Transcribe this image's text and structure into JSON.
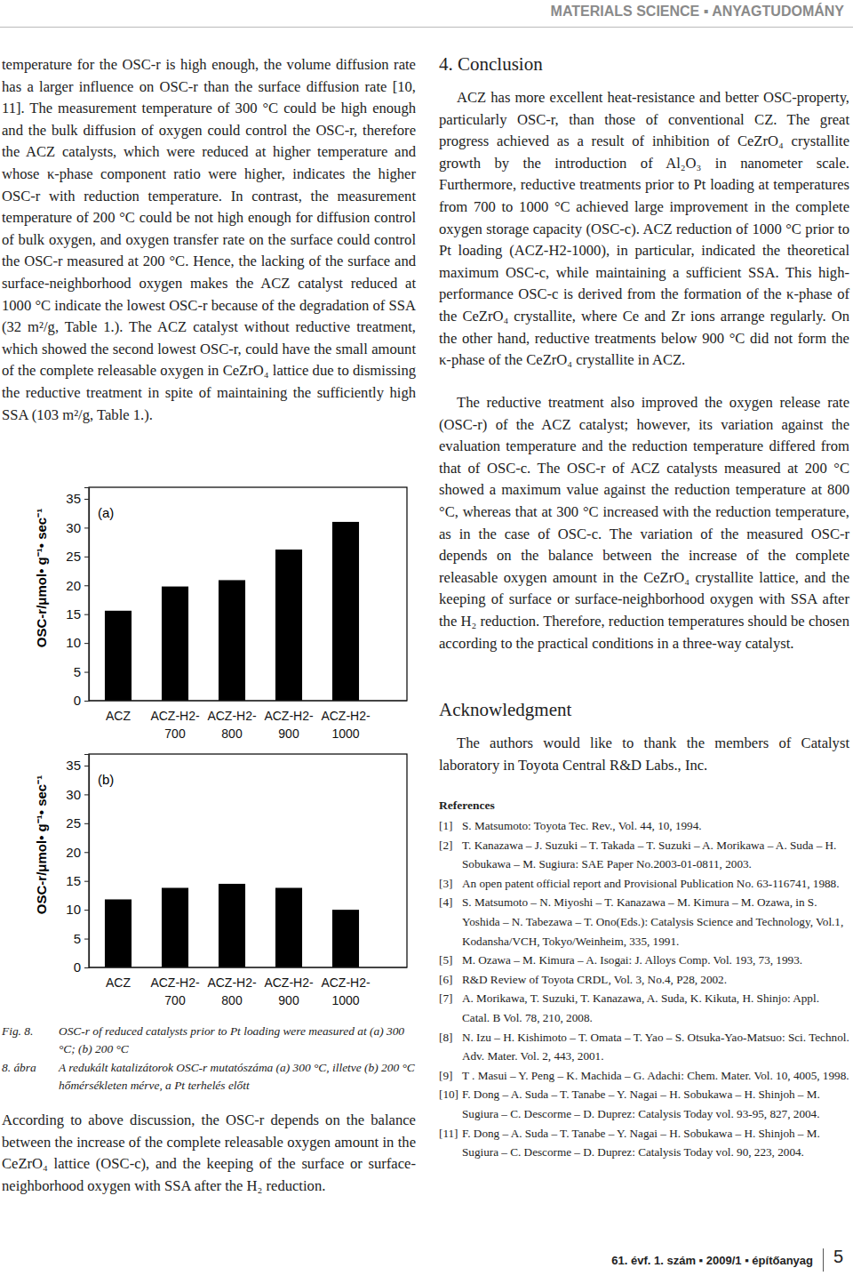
{
  "header": {
    "section": "MATERIALS SCIENCE ▪ ANYAGTUDOMÁNY"
  },
  "left_column": {
    "paragraph": "temperature for the OSC-r is high enough, the volume diffusion rate has a larger influence on OSC-r than the surface diffusion rate [10, 11]. The measurement temperature of 300 °C could be high enough and the bulk diffusion of oxygen could control the OSC-r, therefore the ACZ catalysts, which were reduced at higher temperature and whose κ-phase component ratio were higher, indicates the higher OSC-r with reduction temperature. In contrast, the measurement temperature of 200 °C could be not high enough for diffusion control of bulk oxygen, and oxygen transfer rate on the surface could control the OSC-r measured at 200 °C. Hence, the lacking of the surface and surface-neighborhood oxygen makes the ACZ catalyst reduced at 1000 °C indicate the lowest OSC-r because of the degradation of SSA (32 m²/g, Table 1.). The ACZ catalyst without reductive treatment, which showed the second lowest OSC-r, could have the small amount of the complete releasable oxygen in CeZrO₄ lattice due to dismissing the reductive treatment in spite of maintaining the sufficiently high SSA (103 m²/g, Table 1.).",
    "caption_en_label": "Fig. 8.",
    "caption_en": "OSC-r of reduced catalysts prior to Pt loading were measured at (a) 300 °C; (b) 200 °C",
    "caption_hu_label": "8. ábra",
    "caption_hu": "A redukált katalizátorok OSC-r mutatószáma (a) 300 °C, illetve (b) 200 °C hőmérsékleten mérve, a Pt terhelés előtt",
    "paragraph_after": "According to above discussion, the OSC-r depends on the balance between the increase of the complete releasable oxygen amount in the CeZrO₄ lattice (OSC-c), and the keeping of the surface or surface-neighborhood oxygen with SSA after the H₂ reduction."
  },
  "right_column": {
    "heading": "4. Conclusion",
    "paragraphs": [
      "ACZ has more excellent heat-resistance and better OSC-property, particularly OSC-r, than those of conventional CZ. The great progress achieved as a result of inhibition of CeZrO₄ crystallite growth by the introduction of Al₂O₃ in nanometer scale. Furthermore, reductive treatments prior to Pt loading at temperatures from 700 to 1000 °C achieved large improvement in the complete oxygen storage capacity (OSC-c). ACZ reduction of 1000 °C prior to Pt loading (ACZ-H2-1000), in particular, indicated the theoretical maximum OSC-c, while maintaining a sufficient SSA. This high-performance OSC-c is derived from the formation of the κ-phase of the CeZrO₄ crystallite, where Ce and Zr ions arrange regularly. On the other hand, reductive treatments below 900 °C did not form the κ-phase of the CeZrO₄ crystallite in ACZ.",
      "The reductive treatment also improved the oxygen release rate (OSC-r) of the ACZ catalyst; however, its variation against the evaluation temperature and the reduction temperature differed from that of OSC-c. The OSC-r of ACZ catalysts measured at 200 °C showed a maximum value against the reduction temperature at 800 °C, whereas that at 300 °C increased with the reduction temperature, as in the case of OSC-c. The variation of the measured OSC-r depends on the balance between the increase of the complete releasable oxygen amount in the CeZrO₄ crystallite lattice, and the keeping of surface or surface-neighborhood oxygen with SSA after the H₂ reduction. Therefore, reduction temperatures should be chosen according to the practical conditions in a three-way catalyst."
    ],
    "ack_heading": "Acknowledgment",
    "ack_text": "The authors would like to thank the members of Catalyst laboratory in Toyota Central R&D Labs., Inc.",
    "ref_heading": "References",
    "references": [
      {
        "num": "[1]",
        "text": "S. Matsumoto: Toyota Tec. Rev., Vol. 44, 10, 1994."
      },
      {
        "num": "[2]",
        "text": "T. Kanazawa – J. Suzuki – T. Takada – T. Suzuki – A. Morikawa – A. Suda – H. Sobukawa – M. Sugiura: SAE Paper No.2003-01-0811, 2003."
      },
      {
        "num": "[3]",
        "text": "An open patent official report and Provisional Publication No. 63-116741, 1988."
      },
      {
        "num": "[4]",
        "text": "S. Matsumoto – N. Miyoshi – T. Kanazawa – M. Kimura – M. Ozawa, in S. Yoshida – N. Tabezawa – T. Ono(Eds.): Catalysis Science and Technology, Vol.1, Kodansha/VCH, Tokyo/Weinheim, 335, 1991."
      },
      {
        "num": "[5]",
        "text": "M. Ozawa – M. Kimura – A. Isogai: J. Alloys Comp. Vol. 193, 73, 1993."
      },
      {
        "num": "[6]",
        "text": "R&D Review of Toyota CRDL, Vol. 3, No.4, P28, 2002."
      },
      {
        "num": "[7]",
        "text": "A. Morikawa, T. Suzuki, T. Kanazawa, A. Suda, K. Kikuta, H. Shinjo: Appl. Catal. B Vol. 78, 210, 2008."
      },
      {
        "num": "[8]",
        "text": "N. Izu – H. Kishimoto – T. Omata – T. Yao – S. Otsuka-Yao-Matsuo: Sci. Technol. Adv. Mater. Vol. 2, 443, 2001."
      },
      {
        "num": "[9]",
        "text": "T . Masui – Y. Peng – K. Machida – G. Adachi: Chem. Mater. Vol. 10, 4005, 1998."
      },
      {
        "num": "[10]",
        "text": "F. Dong – A. Suda – T. Tanabe – Y. Nagai – H. Sobukawa – H. Shinjoh – M. Sugiura – C. Descorme – D. Duprez: Catalysis Today vol. 93-95, 827, 2004."
      },
      {
        "num": "[11]",
        "text": "F. Dong – A. Suda – T. Tanabe – Y. Nagai – H. Sobukawa – H. Shinjoh – M. Sugiura – C. Descorme – D. Duprez: Catalysis Today vol. 90, 223, 2004."
      }
    ]
  },
  "footer": {
    "journal": "61. évf. 1. szám ▪ 2009/1 ▪ építőanyag",
    "page": "5"
  },
  "chart_data": [
    {
      "type": "bar",
      "title": "(a)",
      "y_label": "OSC-r/μmol• g⁻¹• sec⁻¹",
      "categories": [
        "ACZ",
        "ACZ-H2-700",
        "ACZ-H2-800",
        "ACZ-H2-900",
        "ACZ-H2-1000"
      ],
      "values": [
        15.6,
        19.8,
        20.9,
        26.2,
        31.0
      ],
      "color": "#000000",
      "ylim": [
        0,
        37
      ],
      "yticks": [
        0,
        5,
        10,
        15,
        20,
        25,
        30,
        35
      ]
    },
    {
      "type": "bar",
      "title": "(b)",
      "y_label": "OSC-r/μmol• g⁻¹• sec⁻¹",
      "categories": [
        "ACZ",
        "ACZ-H2-700",
        "ACZ-H2-800",
        "ACZ-H2-900",
        "ACZ-H2-1000"
      ],
      "values": [
        11.8,
        13.8,
        14.5,
        13.8,
        10.0
      ],
      "color": "#000000",
      "ylim": [
        0,
        37
      ],
      "yticks": [
        0,
        5,
        10,
        15,
        20,
        25,
        30,
        35
      ]
    }
  ]
}
